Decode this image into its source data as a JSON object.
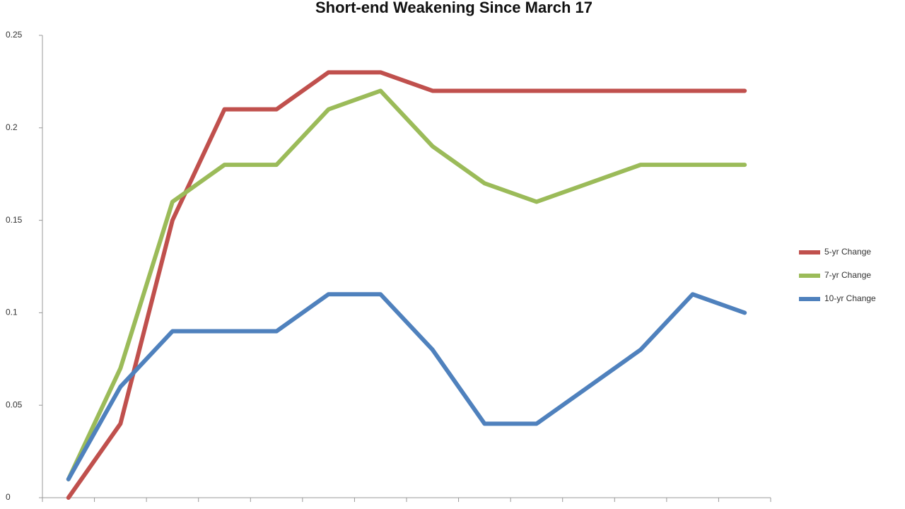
{
  "chart_data": {
    "type": "line",
    "title": "Short-end Weakening Since March 17",
    "categories": [
      null,
      null,
      null,
      null,
      null,
      null,
      null,
      null,
      null,
      null,
      null,
      null,
      null,
      null
    ],
    "series": [
      {
        "name": "5-yr Change",
        "color": "#c0504d",
        "values": [
          0,
          0.04,
          0.15,
          0.21,
          0.21,
          0.23,
          0.23,
          0.22,
          0.22,
          0.22,
          0.22,
          0.22,
          0.22,
          0.22
        ]
      },
      {
        "name": "7-yr Change",
        "color": "#9bbb59",
        "values": [
          0.01,
          0.07,
          0.16,
          0.18,
          0.18,
          0.21,
          0.22,
          0.19,
          0.17,
          0.16,
          0.17,
          0.18,
          0.18,
          0.18
        ]
      },
      {
        "name": "10-yr Change",
        "color": "#4f81bd",
        "values": [
          0.01,
          0.06,
          0.09,
          0.09,
          0.09,
          0.11,
          0.11,
          0.08,
          0.04,
          0.04,
          0.06,
          0.08,
          0.11,
          0.1
        ]
      }
    ],
    "ylim": [
      0,
      0.25
    ],
    "yticks": [
      0,
      0.05,
      0.1,
      0.15,
      0.2,
      0.25
    ],
    "legend": "right"
  }
}
